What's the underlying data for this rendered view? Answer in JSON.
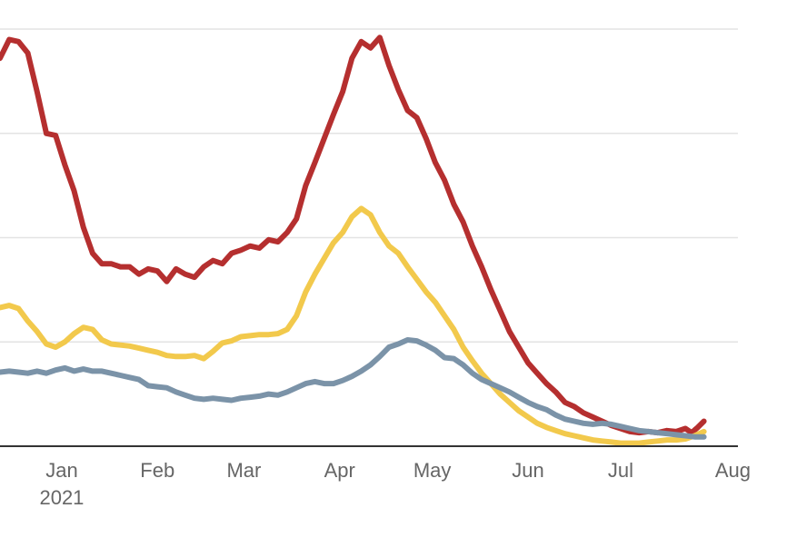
{
  "chart_data": {
    "type": "line",
    "title": "",
    "xlabel": "",
    "ylabel": "",
    "grid": true,
    "x_tick_labels": [
      {
        "date": "2021-01-01",
        "label": "Jan",
        "sublabel": "2021"
      },
      {
        "date": "2021-02-01",
        "label": "Feb",
        "sublabel": ""
      },
      {
        "date": "2021-03-01",
        "label": "Mar",
        "sublabel": ""
      },
      {
        "date": "2021-04-01",
        "label": "Apr",
        "sublabel": ""
      },
      {
        "date": "2021-05-01",
        "label": "May",
        "sublabel": ""
      },
      {
        "date": "2021-06-01",
        "label": "Jun",
        "sublabel": ""
      },
      {
        "date": "2021-07-01",
        "label": "Jul",
        "sublabel": ""
      },
      {
        "date": "2021-08-01",
        "label": "Aug",
        "sublabel": ""
      }
    ],
    "xlim": [
      "2020-12-12",
      "2021-08-08"
    ],
    "ylim": [
      0,
      4
    ],
    "y_gridlines": [
      1,
      2,
      3,
      4
    ],
    "series": [
      {
        "color": "#b52f2f",
        "points": [
          [
            "2020-12-12",
            3.72
          ],
          [
            "2020-12-15",
            3.9
          ],
          [
            "2020-12-18",
            3.88
          ],
          [
            "2020-12-21",
            3.77
          ],
          [
            "2020-12-24",
            3.4
          ],
          [
            "2020-12-27",
            3.0
          ],
          [
            "2020-12-30",
            2.98
          ],
          [
            "2021-01-02",
            2.7
          ],
          [
            "2021-01-05",
            2.45
          ],
          [
            "2021-01-08",
            2.1
          ],
          [
            "2021-01-11",
            1.85
          ],
          [
            "2021-01-14",
            1.75
          ],
          [
            "2021-01-17",
            1.75
          ],
          [
            "2021-01-20",
            1.72
          ],
          [
            "2021-01-23",
            1.72
          ],
          [
            "2021-01-26",
            1.65
          ],
          [
            "2021-01-29",
            1.7
          ],
          [
            "2021-02-01",
            1.68
          ],
          [
            "2021-02-04",
            1.58
          ],
          [
            "2021-02-07",
            1.7
          ],
          [
            "2021-02-10",
            1.65
          ],
          [
            "2021-02-13",
            1.62
          ],
          [
            "2021-02-16",
            1.72
          ],
          [
            "2021-02-19",
            1.78
          ],
          [
            "2021-02-22",
            1.75
          ],
          [
            "2021-02-25",
            1.85
          ],
          [
            "2021-02-28",
            1.88
          ],
          [
            "2021-03-03",
            1.92
          ],
          [
            "2021-03-06",
            1.9
          ],
          [
            "2021-03-09",
            1.98
          ],
          [
            "2021-03-12",
            1.96
          ],
          [
            "2021-03-15",
            2.05
          ],
          [
            "2021-03-18",
            2.18
          ],
          [
            "2021-03-21",
            2.5
          ],
          [
            "2021-03-24",
            2.72
          ],
          [
            "2021-03-27",
            2.95
          ],
          [
            "2021-03-30",
            3.18
          ],
          [
            "2021-04-02",
            3.4
          ],
          [
            "2021-04-05",
            3.72
          ],
          [
            "2021-04-08",
            3.88
          ],
          [
            "2021-04-11",
            3.82
          ],
          [
            "2021-04-14",
            3.92
          ],
          [
            "2021-04-17",
            3.65
          ],
          [
            "2021-04-20",
            3.42
          ],
          [
            "2021-04-23",
            3.22
          ],
          [
            "2021-04-26",
            3.15
          ],
          [
            "2021-04-29",
            2.95
          ],
          [
            "2021-05-02",
            2.72
          ],
          [
            "2021-05-05",
            2.55
          ],
          [
            "2021-05-08",
            2.32
          ],
          [
            "2021-05-11",
            2.15
          ],
          [
            "2021-05-14",
            1.92
          ],
          [
            "2021-05-17",
            1.72
          ],
          [
            "2021-05-20",
            1.5
          ],
          [
            "2021-05-23",
            1.3
          ],
          [
            "2021-05-26",
            1.1
          ],
          [
            "2021-05-29",
            0.95
          ],
          [
            "2021-06-01",
            0.8
          ],
          [
            "2021-06-04",
            0.7
          ],
          [
            "2021-06-07",
            0.6
          ],
          [
            "2021-06-10",
            0.52
          ],
          [
            "2021-06-13",
            0.42
          ],
          [
            "2021-06-16",
            0.38
          ],
          [
            "2021-06-19",
            0.32
          ],
          [
            "2021-06-22",
            0.28
          ],
          [
            "2021-06-25",
            0.24
          ],
          [
            "2021-06-28",
            0.2
          ],
          [
            "2021-07-01",
            0.17
          ],
          [
            "2021-07-04",
            0.14
          ],
          [
            "2021-07-07",
            0.13
          ],
          [
            "2021-07-10",
            0.14
          ],
          [
            "2021-07-13",
            0.13
          ],
          [
            "2021-07-16",
            0.15
          ],
          [
            "2021-07-19",
            0.14
          ],
          [
            "2021-07-22",
            0.17
          ],
          [
            "2021-07-24",
            0.13
          ],
          [
            "2021-07-26",
            0.18
          ],
          [
            "2021-07-28",
            0.24
          ]
        ]
      },
      {
        "color": "#f2c94c",
        "points": [
          [
            "2020-12-12",
            1.33
          ],
          [
            "2020-12-15",
            1.35
          ],
          [
            "2020-12-18",
            1.32
          ],
          [
            "2020-12-21",
            1.2
          ],
          [
            "2020-12-24",
            1.1
          ],
          [
            "2020-12-27",
            0.98
          ],
          [
            "2020-12-30",
            0.95
          ],
          [
            "2021-01-02",
            1.0
          ],
          [
            "2021-01-05",
            1.08
          ],
          [
            "2021-01-08",
            1.14
          ],
          [
            "2021-01-11",
            1.12
          ],
          [
            "2021-01-14",
            1.02
          ],
          [
            "2021-01-17",
            0.98
          ],
          [
            "2021-01-20",
            0.97
          ],
          [
            "2021-01-23",
            0.96
          ],
          [
            "2021-01-26",
            0.94
          ],
          [
            "2021-01-29",
            0.92
          ],
          [
            "2021-02-01",
            0.9
          ],
          [
            "2021-02-04",
            0.87
          ],
          [
            "2021-02-07",
            0.86
          ],
          [
            "2021-02-10",
            0.86
          ],
          [
            "2021-02-13",
            0.87
          ],
          [
            "2021-02-16",
            0.84
          ],
          [
            "2021-02-19",
            0.91
          ],
          [
            "2021-02-22",
            0.99
          ],
          [
            "2021-02-25",
            1.01
          ],
          [
            "2021-02-28",
            1.05
          ],
          [
            "2021-03-03",
            1.06
          ],
          [
            "2021-03-06",
            1.07
          ],
          [
            "2021-03-09",
            1.07
          ],
          [
            "2021-03-12",
            1.08
          ],
          [
            "2021-03-15",
            1.12
          ],
          [
            "2021-03-18",
            1.25
          ],
          [
            "2021-03-21",
            1.48
          ],
          [
            "2021-03-24",
            1.65
          ],
          [
            "2021-03-27",
            1.8
          ],
          [
            "2021-03-30",
            1.95
          ],
          [
            "2021-04-02",
            2.05
          ],
          [
            "2021-04-05",
            2.2
          ],
          [
            "2021-04-08",
            2.28
          ],
          [
            "2021-04-11",
            2.22
          ],
          [
            "2021-04-14",
            2.05
          ],
          [
            "2021-04-17",
            1.92
          ],
          [
            "2021-04-20",
            1.85
          ],
          [
            "2021-04-23",
            1.72
          ],
          [
            "2021-04-26",
            1.6
          ],
          [
            "2021-04-29",
            1.48
          ],
          [
            "2021-05-02",
            1.38
          ],
          [
            "2021-05-05",
            1.25
          ],
          [
            "2021-05-08",
            1.12
          ],
          [
            "2021-05-11",
            0.95
          ],
          [
            "2021-05-14",
            0.82
          ],
          [
            "2021-05-17",
            0.7
          ],
          [
            "2021-05-20",
            0.6
          ],
          [
            "2021-05-23",
            0.5
          ],
          [
            "2021-05-26",
            0.42
          ],
          [
            "2021-05-29",
            0.34
          ],
          [
            "2021-06-01",
            0.28
          ],
          [
            "2021-06-04",
            0.22
          ],
          [
            "2021-06-07",
            0.18
          ],
          [
            "2021-06-10",
            0.15
          ],
          [
            "2021-06-13",
            0.12
          ],
          [
            "2021-06-16",
            0.1
          ],
          [
            "2021-06-19",
            0.08
          ],
          [
            "2021-06-22",
            0.06
          ],
          [
            "2021-06-25",
            0.05
          ],
          [
            "2021-06-28",
            0.04
          ],
          [
            "2021-07-01",
            0.03
          ],
          [
            "2021-07-04",
            0.03
          ],
          [
            "2021-07-07",
            0.03
          ],
          [
            "2021-07-10",
            0.04
          ],
          [
            "2021-07-13",
            0.05
          ],
          [
            "2021-07-16",
            0.06
          ],
          [
            "2021-07-19",
            0.06
          ],
          [
            "2021-07-22",
            0.07
          ],
          [
            "2021-07-25",
            0.1
          ],
          [
            "2021-07-28",
            0.14
          ]
        ]
      },
      {
        "color": "#7b93a8",
        "points": [
          [
            "2020-12-12",
            0.71
          ],
          [
            "2020-12-15",
            0.72
          ],
          [
            "2020-12-18",
            0.71
          ],
          [
            "2020-12-21",
            0.7
          ],
          [
            "2020-12-24",
            0.72
          ],
          [
            "2020-12-27",
            0.7
          ],
          [
            "2020-12-30",
            0.73
          ],
          [
            "2021-01-02",
            0.75
          ],
          [
            "2021-01-05",
            0.72
          ],
          [
            "2021-01-08",
            0.74
          ],
          [
            "2021-01-11",
            0.72
          ],
          [
            "2021-01-14",
            0.72
          ],
          [
            "2021-01-17",
            0.7
          ],
          [
            "2021-01-20",
            0.68
          ],
          [
            "2021-01-23",
            0.66
          ],
          [
            "2021-01-26",
            0.64
          ],
          [
            "2021-01-29",
            0.58
          ],
          [
            "2021-02-01",
            0.57
          ],
          [
            "2021-02-04",
            0.56
          ],
          [
            "2021-02-07",
            0.52
          ],
          [
            "2021-02-10",
            0.49
          ],
          [
            "2021-02-13",
            0.46
          ],
          [
            "2021-02-16",
            0.45
          ],
          [
            "2021-02-19",
            0.46
          ],
          [
            "2021-02-22",
            0.45
          ],
          [
            "2021-02-25",
            0.44
          ],
          [
            "2021-02-28",
            0.46
          ],
          [
            "2021-03-03",
            0.47
          ],
          [
            "2021-03-06",
            0.48
          ],
          [
            "2021-03-09",
            0.5
          ],
          [
            "2021-03-12",
            0.49
          ],
          [
            "2021-03-15",
            0.52
          ],
          [
            "2021-03-18",
            0.56
          ],
          [
            "2021-03-21",
            0.6
          ],
          [
            "2021-03-24",
            0.62
          ],
          [
            "2021-03-27",
            0.6
          ],
          [
            "2021-03-30",
            0.6
          ],
          [
            "2021-04-02",
            0.63
          ],
          [
            "2021-04-05",
            0.67
          ],
          [
            "2021-04-08",
            0.72
          ],
          [
            "2021-04-11",
            0.78
          ],
          [
            "2021-04-14",
            0.86
          ],
          [
            "2021-04-17",
            0.95
          ],
          [
            "2021-04-20",
            0.98
          ],
          [
            "2021-04-23",
            1.02
          ],
          [
            "2021-04-26",
            1.01
          ],
          [
            "2021-04-29",
            0.97
          ],
          [
            "2021-05-02",
            0.92
          ],
          [
            "2021-05-05",
            0.85
          ],
          [
            "2021-05-08",
            0.84
          ],
          [
            "2021-05-11",
            0.78
          ],
          [
            "2021-05-14",
            0.7
          ],
          [
            "2021-05-17",
            0.64
          ],
          [
            "2021-05-20",
            0.6
          ],
          [
            "2021-05-23",
            0.56
          ],
          [
            "2021-05-26",
            0.52
          ],
          [
            "2021-05-29",
            0.47
          ],
          [
            "2021-06-01",
            0.42
          ],
          [
            "2021-06-04",
            0.38
          ],
          [
            "2021-06-07",
            0.35
          ],
          [
            "2021-06-10",
            0.3
          ],
          [
            "2021-06-13",
            0.26
          ],
          [
            "2021-06-16",
            0.24
          ],
          [
            "2021-06-19",
            0.22
          ],
          [
            "2021-06-22",
            0.21
          ],
          [
            "2021-06-25",
            0.22
          ],
          [
            "2021-06-28",
            0.21
          ],
          [
            "2021-07-01",
            0.19
          ],
          [
            "2021-07-04",
            0.17
          ],
          [
            "2021-07-07",
            0.15
          ],
          [
            "2021-07-10",
            0.14
          ],
          [
            "2021-07-13",
            0.13
          ],
          [
            "2021-07-16",
            0.12
          ],
          [
            "2021-07-19",
            0.11
          ],
          [
            "2021-07-22",
            0.1
          ],
          [
            "2021-07-25",
            0.09
          ],
          [
            "2021-07-28",
            0.09
          ]
        ]
      }
    ]
  }
}
